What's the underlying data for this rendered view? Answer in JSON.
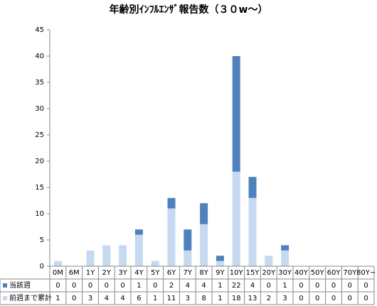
{
  "chart_data": {
    "type": "stacked_bar",
    "title": "年齢別ｲﾝﾌﾙｴﾝｻﾞ報告数（３０w〜）",
    "categories": [
      "0M",
      "6M",
      "1Y",
      "2Y",
      "3Y",
      "4Y",
      "5Y",
      "6Y",
      "7Y",
      "8Y",
      "9Y",
      "10Y",
      "15Y",
      "20Y",
      "30Y",
      "40Y",
      "50Y",
      "60Y",
      "70Y",
      "80Y~"
    ],
    "series": [
      {
        "name": "当該週",
        "color": "#4f81bd",
        "values": [
          0,
          0,
          0,
          0,
          0,
          1,
          0,
          2,
          4,
          4,
          1,
          22,
          4,
          0,
          1,
          0,
          0,
          0,
          0,
          0
        ]
      },
      {
        "name": "前週まで累計",
        "color": "#c6d9f1",
        "values": [
          1,
          0,
          3,
          4,
          4,
          6,
          1,
          11,
          3,
          8,
          1,
          18,
          13,
          2,
          3,
          0,
          0,
          0,
          0,
          0
        ]
      }
    ],
    "ylim": [
      0,
      45
    ],
    "yticks": [
      0,
      5,
      10,
      15,
      20,
      25,
      30,
      35,
      40,
      45
    ],
    "grid": false
  }
}
